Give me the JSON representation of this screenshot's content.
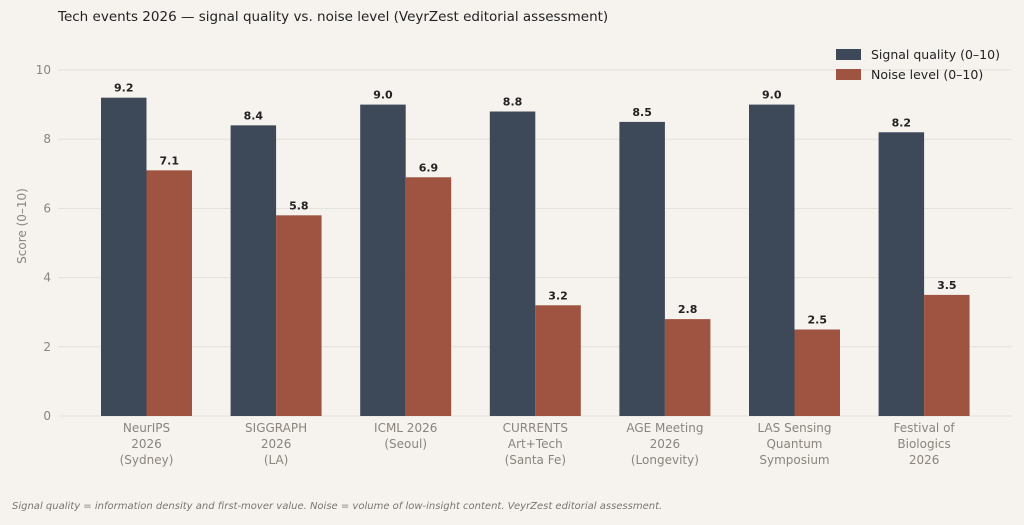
{
  "chart_data": {
    "type": "bar",
    "title": "Tech events 2026 — signal quality vs. noise level (VeyrZest editorial assessment)",
    "ylabel": "Score (0–10)",
    "ylim": [
      0,
      10
    ],
    "yticks": [
      0,
      2,
      4,
      6,
      8,
      10
    ],
    "grid": true,
    "legend_position": "top-right",
    "categories": [
      [
        "NeurIPS",
        "2026",
        "(Sydney)"
      ],
      [
        "SIGGRAPH",
        "2026",
        "(LA)"
      ],
      [
        "ICML 2026",
        "(Seoul)"
      ],
      [
        "CURRENTS",
        "Art+Tech",
        "(Santa Fe)"
      ],
      [
        "AGE Meeting",
        "2026",
        "(Longevity)"
      ],
      [
        "LAS Sensing",
        "Quantum",
        "Symposium"
      ],
      [
        "Festival of",
        "Biologics",
        "2026"
      ]
    ],
    "series": [
      {
        "name": "Signal quality (0–10)",
        "color": "#3d4858",
        "values": [
          9.2,
          8.4,
          9.0,
          8.8,
          8.5,
          9.0,
          8.2
        ]
      },
      {
        "name": "Noise level (0–10)",
        "color": "#9e5440",
        "values": [
          7.1,
          5.8,
          6.9,
          3.2,
          2.8,
          2.5,
          3.5
        ]
      }
    ]
  },
  "footnote": "Signal quality = information density and first-mover value. Noise = volume of low-insight content. VeyrZest editorial assessment."
}
